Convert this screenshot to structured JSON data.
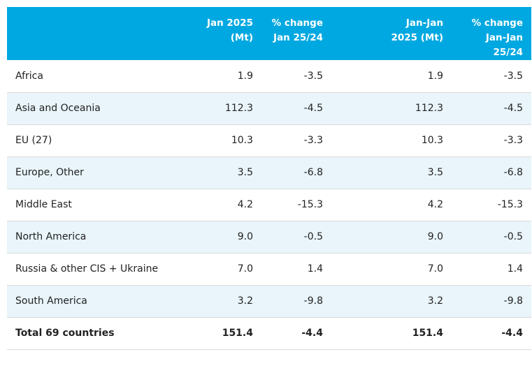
{
  "table": {
    "headers": [
      {
        "lines": []
      },
      {
        "lines": [
          "Jan 2025",
          "(Mt)"
        ]
      },
      {
        "lines": [
          "% change",
          "Jan 25/24"
        ]
      },
      {
        "lines": [
          "Jan-Jan",
          "2025 (Mt)"
        ]
      },
      {
        "lines": [
          "% change",
          "Jan-Jan",
          "25/24"
        ]
      }
    ],
    "rows": [
      {
        "region": "Africa",
        "jan_2025": "1.9",
        "pct_change_jan": "-3.5",
        "jan_jan_2025": "1.9",
        "pct_change_jan_jan": "-3.5"
      },
      {
        "region": "Asia and Oceania",
        "jan_2025": "112.3",
        "pct_change_jan": "-4.5",
        "jan_jan_2025": "112.3",
        "pct_change_jan_jan": "-4.5"
      },
      {
        "region": "EU (27)",
        "jan_2025": "10.3",
        "pct_change_jan": "-3.3",
        "jan_jan_2025": "10.3",
        "pct_change_jan_jan": "-3.3"
      },
      {
        "region": "Europe, Other",
        "jan_2025": "3.5",
        "pct_change_jan": "-6.8",
        "jan_jan_2025": "3.5",
        "pct_change_jan_jan": "-6.8"
      },
      {
        "region": "Middle East",
        "jan_2025": "4.2",
        "pct_change_jan": "-15.3",
        "jan_jan_2025": "4.2",
        "pct_change_jan_jan": "-15.3"
      },
      {
        "region": "North America",
        "jan_2025": "9.0",
        "pct_change_jan": "-0.5",
        "jan_jan_2025": "9.0",
        "pct_change_jan_jan": "-0.5"
      },
      {
        "region": "Russia & other CIS + Ukraine",
        "jan_2025": "7.0",
        "pct_change_jan": "1.4",
        "jan_jan_2025": "7.0",
        "pct_change_jan_jan": "1.4"
      },
      {
        "region": "South America",
        "jan_2025": "3.2",
        "pct_change_jan": "-9.8",
        "jan_jan_2025": "3.2",
        "pct_change_jan_jan": "-9.8"
      }
    ],
    "total": {
      "region": "Total 69 countries",
      "jan_2025": "151.4",
      "pct_change_jan": "-4.4",
      "jan_jan_2025": "151.4",
      "pct_change_jan_jan": "-4.4"
    }
  },
  "colors": {
    "header_bg": "#00a8e1",
    "header_text": "#ffffff",
    "alt_row_bg": "#e9f5fb",
    "row_border": "#d9d9d9"
  }
}
